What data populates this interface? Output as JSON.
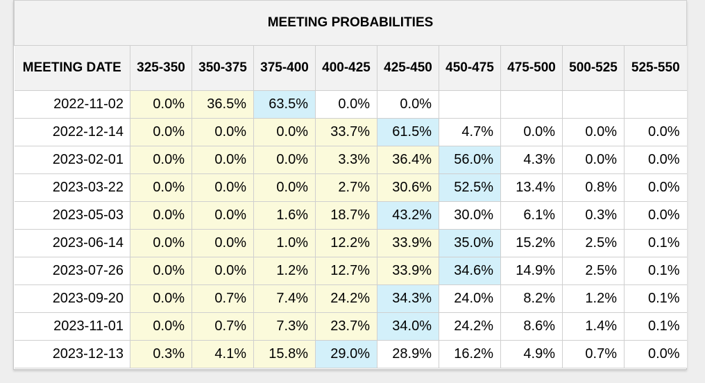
{
  "chart_data": {
    "type": "table",
    "title": "MEETING PROBABILITIES",
    "header_label": "MEETING DATE",
    "columns": [
      "325-350",
      "350-375",
      "375-400",
      "400-425",
      "425-450",
      "450-475",
      "475-500",
      "500-525",
      "525-550"
    ],
    "rows": [
      {
        "date": "2022-11-02",
        "values": [
          "0.0%",
          "36.5%",
          "63.5%",
          "0.0%",
          "0.0%",
          "",
          "",
          "",
          ""
        ],
        "max_index": 2
      },
      {
        "date": "2022-12-14",
        "values": [
          "0.0%",
          "0.0%",
          "0.0%",
          "33.7%",
          "61.5%",
          "4.7%",
          "0.0%",
          "0.0%",
          "0.0%"
        ],
        "max_index": 4
      },
      {
        "date": "2023-02-01",
        "values": [
          "0.0%",
          "0.0%",
          "0.0%",
          "3.3%",
          "36.4%",
          "56.0%",
          "4.3%",
          "0.0%",
          "0.0%"
        ],
        "max_index": 5
      },
      {
        "date": "2023-03-22",
        "values": [
          "0.0%",
          "0.0%",
          "0.0%",
          "2.7%",
          "30.6%",
          "52.5%",
          "13.4%",
          "0.8%",
          "0.0%"
        ],
        "max_index": 5
      },
      {
        "date": "2023-05-03",
        "values": [
          "0.0%",
          "0.0%",
          "1.6%",
          "18.7%",
          "43.2%",
          "30.0%",
          "6.1%",
          "0.3%",
          "0.0%"
        ],
        "max_index": 4
      },
      {
        "date": "2023-06-14",
        "values": [
          "0.0%",
          "0.0%",
          "1.0%",
          "12.2%",
          "33.9%",
          "35.0%",
          "15.2%",
          "2.5%",
          "0.1%"
        ],
        "max_index": 5
      },
      {
        "date": "2023-07-26",
        "values": [
          "0.0%",
          "0.0%",
          "1.2%",
          "12.7%",
          "33.9%",
          "34.6%",
          "14.9%",
          "2.5%",
          "0.1%"
        ],
        "max_index": 5
      },
      {
        "date": "2023-09-20",
        "values": [
          "0.0%",
          "0.7%",
          "7.4%",
          "24.2%",
          "34.3%",
          "24.0%",
          "8.2%",
          "1.2%",
          "0.1%"
        ],
        "max_index": 4
      },
      {
        "date": "2023-11-01",
        "values": [
          "0.0%",
          "0.7%",
          "7.3%",
          "23.7%",
          "34.0%",
          "24.2%",
          "8.6%",
          "1.4%",
          "0.1%"
        ],
        "max_index": 4
      },
      {
        "date": "2023-12-13",
        "values": [
          "0.3%",
          "4.1%",
          "15.8%",
          "29.0%",
          "28.9%",
          "16.2%",
          "4.9%",
          "0.7%",
          "0.0%"
        ],
        "max_index": 3
      }
    ]
  },
  "colors": {
    "below_max": "#fbfadb",
    "max": "#d3f0fa",
    "above_max": "#ffffff",
    "header_bg": "#f2f2f2"
  }
}
